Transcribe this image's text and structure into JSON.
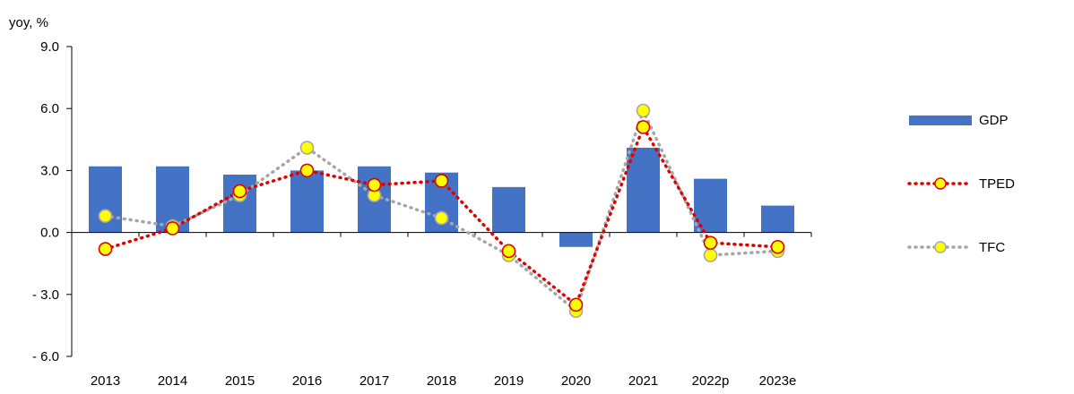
{
  "chart_data": {
    "type": "bar",
    "ylabel": "yoy, %",
    "ylim": [
      -6.0,
      9.0
    ],
    "yticks": [
      9.0,
      6.0,
      3.0,
      0.0,
      -3.0,
      -6.0
    ],
    "ytick_labels": [
      "9.0",
      "6.0",
      "3.0",
      "0.0",
      "- 3.0",
      "- 6.0"
    ],
    "categories": [
      "2013",
      "2014",
      "2015",
      "2016",
      "2017",
      "2018",
      "2019",
      "2020",
      "2021",
      "2022p",
      "2023e"
    ],
    "legend_position": "right",
    "series": [
      {
        "name": "GDP",
        "kind": "bar",
        "color": "#4472C4",
        "values": [
          3.2,
          3.2,
          2.8,
          3.0,
          3.2,
          2.9,
          2.2,
          -0.7,
          4.1,
          2.6,
          1.3
        ]
      },
      {
        "name": "TPED",
        "kind": "line",
        "line_style": "dotted",
        "color": "#E00000",
        "marker_fill": "#FFFF00",
        "values": [
          -0.8,
          0.2,
          2.0,
          3.0,
          2.3,
          2.5,
          -0.9,
          -3.5,
          5.1,
          -0.5,
          -0.7
        ]
      },
      {
        "name": "TFC",
        "kind": "line",
        "line_style": "dotted",
        "color": "#A6A6A6",
        "marker_fill": "#FFFF00",
        "values": [
          0.8,
          0.3,
          1.8,
          4.1,
          1.8,
          0.7,
          -1.1,
          -3.8,
          5.9,
          -1.1,
          -0.9
        ]
      }
    ]
  }
}
